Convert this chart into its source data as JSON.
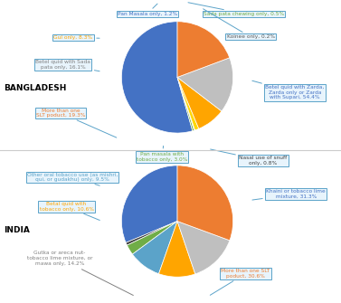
{
  "bangladesh": {
    "values": [
      54.4,
      0.5,
      0.2,
      1.2,
      8.3,
      16.1,
      19.3
    ],
    "colors": [
      "#4472C4",
      "#70AD47",
      "#595959",
      "#FFD700",
      "#FFA500",
      "#BFBFBF",
      "#ED7D31"
    ],
    "startangle": 90
  },
  "india": {
    "values": [
      31.3,
      0.8,
      3.0,
      9.5,
      10.6,
      14.2,
      30.6
    ],
    "colors": [
      "#4472C4",
      "#404040",
      "#70AD47",
      "#5BA3C9",
      "#FFA500",
      "#BFBFBF",
      "#ED7D31"
    ],
    "startangle": 90
  },
  "bg_color": "#FFFFFF",
  "box_fc": "#E8F4FC",
  "box_ec": "#5BA3C9",
  "ann_lw": 0.7,
  "ann_fs": 4.2
}
